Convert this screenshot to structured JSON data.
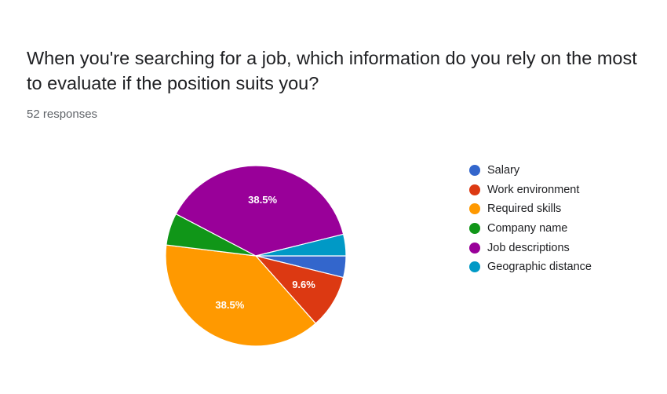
{
  "question": "When you're searching for a job, which information do you rely on the most to evaluate if the position suits you?",
  "responses_text": "52 responses",
  "chart_data": {
    "type": "pie",
    "categories": [
      "Salary",
      "Work environment",
      "Required skills",
      "Company name",
      "Job descriptions",
      "Geographic distance"
    ],
    "values": [
      2,
      5,
      20,
      3,
      20,
      2
    ],
    "total": 52,
    "percent_labels": [
      "",
      "9.6%",
      "38.5%",
      "",
      "38.5%",
      ""
    ],
    "colors": [
      "#3366cc",
      "#dc3912",
      "#ff9900",
      "#109618",
      "#990099",
      "#0099c6"
    ],
    "start": "3 o'clock",
    "direction": "clockwise",
    "legend_position": "right"
  }
}
